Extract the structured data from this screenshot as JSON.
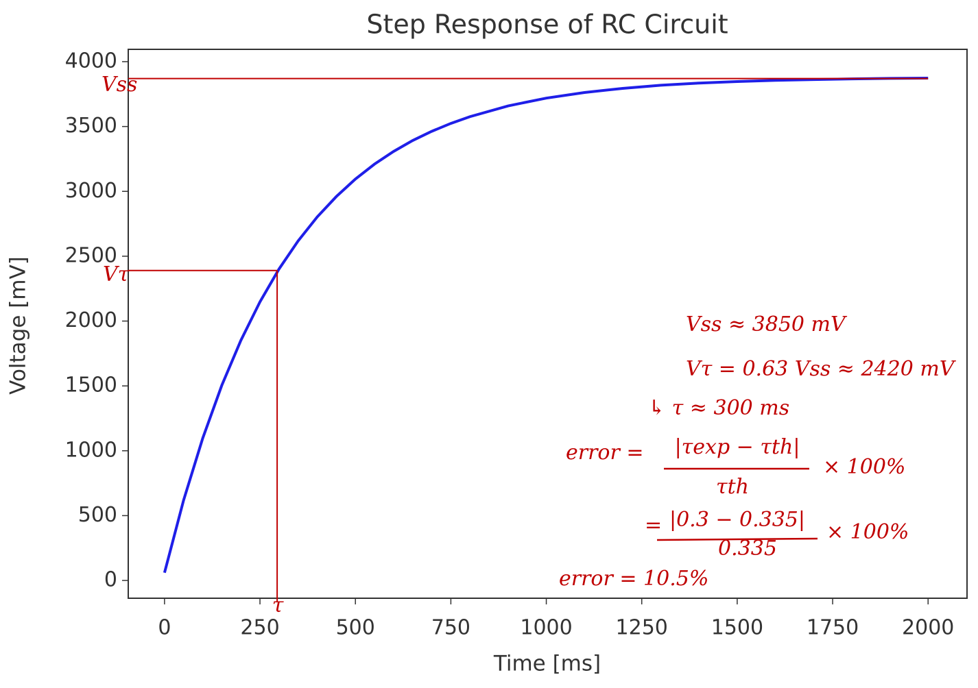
{
  "chart_data": {
    "type": "line",
    "title": "Step Response of RC Circuit",
    "x_label": "Time [ms]",
    "y_label": "Voltage [mV]",
    "x": [
      0,
      50,
      100,
      150,
      200,
      250,
      300,
      350,
      400,
      450,
      500,
      550,
      600,
      650,
      700,
      750,
      800,
      900,
      1000,
      1100,
      1200,
      1300,
      1400,
      1500,
      1600,
      1700,
      1800,
      1900,
      2000
    ],
    "series": [
      {
        "color": "#1f1fe8",
        "values": [
          60,
          619,
          1096,
          1504,
          1851,
          2148,
          2402,
          2618,
          2803,
          2960,
          3095,
          3210,
          3308,
          3392,
          3463,
          3524,
          3576,
          3659,
          3719,
          3762,
          3794,
          3818,
          3835,
          3847,
          3856,
          3862,
          3867,
          3871,
          3873
        ]
      }
    ],
    "xlim": [
      -95,
      2102
    ],
    "ylim": [
      -137,
      4095
    ],
    "xticks": [
      0,
      250,
      500,
      750,
      1000,
      1250,
      1500,
      1750,
      2000
    ],
    "yticks": [
      0,
      500,
      1000,
      1500,
      2000,
      2500,
      3000,
      3500,
      4000
    ],
    "annotations": {
      "color": "#c00000",
      "vss": {
        "label": "Vss",
        "y": 3870
      },
      "vtau": {
        "label": "Vτ",
        "x": 295,
        "y": 2390
      },
      "tau_label": "τ",
      "notes": [
        "Vss ≈ 3850 mV",
        "Vτ = 0.63 Vss ≈ 2420 mV",
        "↳ τ ≈ 300 ms",
        "error =",
        "|τexp − τth|",
        "τth",
        "× 100%",
        "=",
        "|0.3 − 0.335|",
        "0.335",
        "× 100%",
        "error = 10.5%"
      ]
    }
  }
}
